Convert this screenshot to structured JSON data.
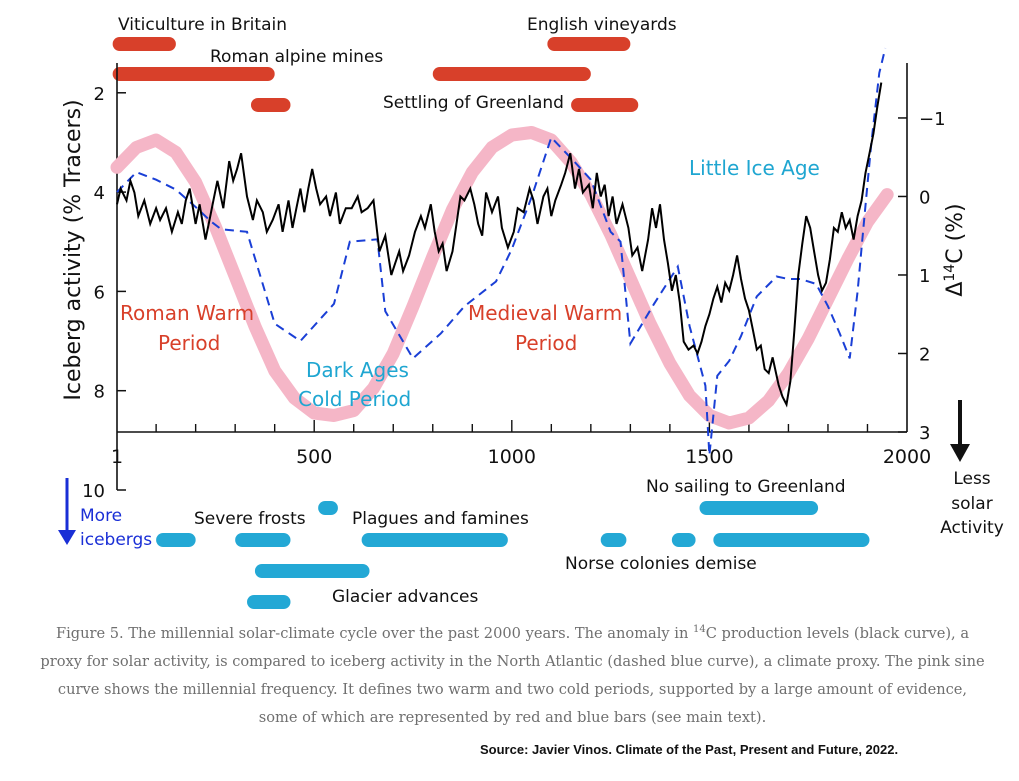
{
  "chart_data": {
    "type": "line",
    "xlabel": "",
    "ylabel_left": "Iceberg activity (% Tracers)",
    "ylabel_right": "Δ14C (%)",
    "x_ticks": [
      1,
      500,
      1000,
      1500,
      2000
    ],
    "xlim": [
      1,
      2000
    ],
    "left_ticks": [
      2,
      4,
      6,
      8,
      10
    ],
    "left_lim": [
      1.4,
      10
    ],
    "left_inverted": true,
    "right_ticks": [
      -1,
      0,
      1,
      2,
      3
    ],
    "right_lim": [
      -1.7,
      3
    ],
    "right_inverted": true,
    "series": [
      {
        "color": "#000000",
        "style": "solid",
        "axis": "right",
        "values": [
          [
            1,
            0.1
          ],
          [
            10,
            -0.1
          ],
          [
            25,
            0.05
          ],
          [
            35,
            -0.2
          ],
          [
            45,
            -0.05
          ],
          [
            55,
            0.25
          ],
          [
            70,
            0.05
          ],
          [
            85,
            0.35
          ],
          [
            100,
            0.15
          ],
          [
            110,
            0.3
          ],
          [
            125,
            0.15
          ],
          [
            140,
            0.45
          ],
          [
            155,
            0.2
          ],
          [
            165,
            0.35
          ],
          [
            175,
            0.05
          ],
          [
            185,
            -0.1
          ],
          [
            200,
            0.35
          ],
          [
            210,
            0.1
          ],
          [
            225,
            0.55
          ],
          [
            235,
            0.3
          ],
          [
            245,
            0.05
          ],
          [
            255,
            -0.2
          ],
          [
            270,
            0.15
          ],
          [
            285,
            -0.45
          ],
          [
            295,
            -0.2
          ],
          [
            305,
            -0.35
          ],
          [
            315,
            -0.55
          ],
          [
            330,
            0.0
          ],
          [
            345,
            0.3
          ],
          [
            355,
            0.05
          ],
          [
            370,
            0.2
          ],
          [
            380,
            0.45
          ],
          [
            395,
            0.3
          ],
          [
            410,
            0.1
          ],
          [
            420,
            0.45
          ],
          [
            435,
            0.05
          ],
          [
            445,
            0.4
          ],
          [
            455,
            0.15
          ],
          [
            465,
            -0.1
          ],
          [
            475,
            0.2
          ],
          [
            485,
            -0.1
          ],
          [
            495,
            -0.35
          ],
          [
            505,
            -0.1
          ],
          [
            515,
            0.1
          ],
          [
            530,
            0.0
          ],
          [
            540,
            0.25
          ],
          [
            555,
            -0.05
          ],
          [
            565,
            0.35
          ],
          [
            580,
            0.15
          ],
          [
            595,
            0.15
          ],
          [
            610,
            0.0
          ],
          [
            620,
            0.2
          ],
          [
            635,
            0.15
          ],
          [
            650,
            0.05
          ],
          [
            665,
            0.7
          ],
          [
            680,
            0.5
          ],
          [
            695,
            1.0
          ],
          [
            705,
            0.85
          ],
          [
            715,
            0.7
          ],
          [
            725,
            0.95
          ],
          [
            740,
            0.75
          ],
          [
            755,
            0.45
          ],
          [
            770,
            0.25
          ],
          [
            780,
            0.4
          ],
          [
            795,
            0.1
          ],
          [
            805,
            0.45
          ],
          [
            815,
            0.7
          ],
          [
            825,
            0.6
          ],
          [
            835,
            0.95
          ],
          [
            850,
            0.7
          ],
          [
            860,
            0.35
          ],
          [
            870,
            0.0
          ],
          [
            880,
            0.05
          ],
          [
            895,
            -0.1
          ],
          [
            905,
            0.1
          ],
          [
            915,
            0.35
          ],
          [
            925,
            0.5
          ],
          [
            935,
            -0.05
          ],
          [
            950,
            0.2
          ],
          [
            965,
            0.0
          ],
          [
            975,
            0.4
          ],
          [
            990,
            0.65
          ],
          [
            1005,
            0.45
          ],
          [
            1015,
            0.15
          ],
          [
            1030,
            0.2
          ],
          [
            1045,
            -0.1
          ],
          [
            1055,
            0.05
          ],
          [
            1065,
            0.35
          ],
          [
            1080,
            0.0
          ],
          [
            1090,
            -0.1
          ],
          [
            1100,
            0.25
          ],
          [
            1110,
            0.05
          ],
          [
            1125,
            -0.15
          ],
          [
            1135,
            -0.3
          ],
          [
            1148,
            -0.55
          ],
          [
            1160,
            -0.1
          ],
          [
            1170,
            -0.35
          ],
          [
            1180,
            -0.05
          ],
          [
            1195,
            -0.15
          ],
          [
            1205,
            0.15
          ],
          [
            1215,
            -0.3
          ],
          [
            1225,
            0.0
          ],
          [
            1235,
            -0.15
          ],
          [
            1245,
            0.25
          ],
          [
            1255,
            0.0
          ],
          [
            1265,
            0.35
          ],
          [
            1280,
            0.1
          ],
          [
            1295,
            0.4
          ],
          [
            1305,
            0.75
          ],
          [
            1318,
            0.65
          ],
          [
            1330,
            0.95
          ],
          [
            1345,
            0.55
          ],
          [
            1355,
            0.15
          ],
          [
            1365,
            0.4
          ],
          [
            1375,
            0.1
          ],
          [
            1385,
            0.55
          ],
          [
            1395,
            0.85
          ],
          [
            1405,
            1.2
          ],
          [
            1415,
            1.0
          ],
          [
            1425,
            1.35
          ],
          [
            1435,
            1.85
          ],
          [
            1447,
            1.95
          ],
          [
            1460,
            1.9
          ],
          [
            1470,
            2.0
          ],
          [
            1480,
            1.85
          ],
          [
            1490,
            1.65
          ],
          [
            1500,
            1.5
          ],
          [
            1510,
            1.3
          ],
          [
            1520,
            1.15
          ],
          [
            1530,
            1.35
          ],
          [
            1540,
            1.1
          ],
          [
            1550,
            1.2
          ],
          [
            1560,
            1.0
          ],
          [
            1570,
            0.75
          ],
          [
            1580,
            1.05
          ],
          [
            1590,
            1.3
          ],
          [
            1600,
            1.45
          ],
          [
            1610,
            1.7
          ],
          [
            1620,
            1.95
          ],
          [
            1630,
            1.9
          ],
          [
            1640,
            2.2
          ],
          [
            1650,
            2.25
          ],
          [
            1660,
            2.05
          ],
          [
            1675,
            2.4
          ],
          [
            1685,
            2.55
          ],
          [
            1695,
            2.65
          ],
          [
            1705,
            2.35
          ],
          [
            1715,
            1.7
          ],
          [
            1725,
            1.0
          ],
          [
            1735,
            0.6
          ],
          [
            1745,
            0.25
          ],
          [
            1755,
            0.4
          ],
          [
            1765,
            0.7
          ],
          [
            1775,
            1.0
          ],
          [
            1785,
            1.2
          ],
          [
            1795,
            1.1
          ],
          [
            1805,
            0.8
          ],
          [
            1815,
            0.4
          ],
          [
            1825,
            0.45
          ],
          [
            1835,
            0.2
          ],
          [
            1845,
            0.4
          ],
          [
            1855,
            0.3
          ],
          [
            1865,
            0.55
          ],
          [
            1875,
            0.25
          ],
          [
            1885,
            0.05
          ],
          [
            1895,
            -0.3
          ],
          [
            1905,
            -0.55
          ],
          [
            1915,
            -0.8
          ],
          [
            1925,
            -1.15
          ],
          [
            1935,
            -1.45
          ]
        ]
      },
      {
        "color": "#1a3fd6",
        "style": "dashed",
        "axis": "left",
        "values": [
          [
            1,
            4.0
          ],
          [
            50,
            3.6
          ],
          [
            100,
            3.75
          ],
          [
            150,
            3.95
          ],
          [
            200,
            4.3
          ],
          [
            240,
            4.6
          ],
          [
            265,
            4.75
          ],
          [
            330,
            4.8
          ],
          [
            400,
            6.65
          ],
          [
            465,
            7.0
          ],
          [
            550,
            6.25
          ],
          [
            590,
            5.0
          ],
          [
            660,
            4.95
          ],
          [
            680,
            6.4
          ],
          [
            750,
            7.35
          ],
          [
            820,
            6.85
          ],
          [
            880,
            6.3
          ],
          [
            960,
            5.8
          ],
          [
            1000,
            5.15
          ],
          [
            1050,
            4.1
          ],
          [
            1100,
            2.9
          ],
          [
            1160,
            3.4
          ],
          [
            1200,
            3.75
          ],
          [
            1250,
            4.8
          ],
          [
            1275,
            5.0
          ],
          [
            1300,
            7.05
          ],
          [
            1360,
            6.25
          ],
          [
            1420,
            5.5
          ],
          [
            1450,
            6.7
          ],
          [
            1490,
            7.9
          ],
          [
            1500,
            9.3
          ],
          [
            1520,
            7.7
          ],
          [
            1550,
            7.4
          ],
          [
            1580,
            6.9
          ],
          [
            1620,
            6.1
          ],
          [
            1670,
            5.7
          ],
          [
            1700,
            5.75
          ],
          [
            1730,
            5.75
          ],
          [
            1770,
            5.85
          ],
          [
            1800,
            6.3
          ],
          [
            1830,
            6.85
          ],
          [
            1855,
            7.35
          ],
          [
            1875,
            6.0
          ],
          [
            1890,
            4.7
          ],
          [
            1910,
            3.0
          ],
          [
            1930,
            1.6
          ],
          [
            1945,
            1.1
          ]
        ]
      },
      {
        "color": "#f5b6c7",
        "style": "solid",
        "axis": "left",
        "values": [
          [
            1,
            3.5
          ],
          [
            50,
            3.1
          ],
          [
            100,
            2.95
          ],
          [
            150,
            3.2
          ],
          [
            200,
            3.8
          ],
          [
            250,
            4.7
          ],
          [
            300,
            5.7
          ],
          [
            350,
            6.7
          ],
          [
            400,
            7.6
          ],
          [
            450,
            8.15
          ],
          [
            500,
            8.45
          ],
          [
            550,
            8.5
          ],
          [
            600,
            8.4
          ],
          [
            650,
            7.95
          ],
          [
            700,
            7.25
          ],
          [
            750,
            6.3
          ],
          [
            800,
            5.3
          ],
          [
            850,
            4.35
          ],
          [
            900,
            3.6
          ],
          [
            950,
            3.1
          ],
          [
            1000,
            2.85
          ],
          [
            1050,
            2.8
          ],
          [
            1100,
            2.95
          ],
          [
            1150,
            3.4
          ],
          [
            1200,
            4.05
          ],
          [
            1250,
            4.85
          ],
          [
            1300,
            5.75
          ],
          [
            1350,
            6.65
          ],
          [
            1400,
            7.45
          ],
          [
            1450,
            8.1
          ],
          [
            1500,
            8.5
          ],
          [
            1550,
            8.65
          ],
          [
            1600,
            8.55
          ],
          [
            1650,
            8.2
          ],
          [
            1700,
            7.65
          ],
          [
            1750,
            6.95
          ],
          [
            1800,
            6.15
          ],
          [
            1850,
            5.35
          ],
          [
            1900,
            4.6
          ],
          [
            1950,
            4.05
          ]
        ]
      }
    ],
    "annotations_red": [
      "Roman Warm",
      "Period",
      "Medieval Warm",
      "Period"
    ],
    "annotations_blue": [
      "Dark Ages",
      "Cold Period",
      "Little Ice Age"
    ],
    "red_bars": [
      {
        "label": "Viticulture in Britain",
        "start": -10,
        "end": 150
      },
      {
        "label": "Roman alpine mines",
        "start": -10,
        "end": 400
      },
      {
        "label": "",
        "start": 340,
        "end": 440
      },
      {
        "label": "English vineyards",
        "start": 1090,
        "end": 1300
      },
      {
        "label": "",
        "start": 800,
        "end": 1200
      },
      {
        "label": "Settling of Greenland",
        "start": 1150,
        "end": 1320
      }
    ],
    "blue_bars": [
      {
        "label": "",
        "start": 1475,
        "end": 1775
      },
      {
        "label": "",
        "start": 510,
        "end": 560
      },
      {
        "label": "",
        "start": 100,
        "end": 200
      },
      {
        "label": "Severe frosts",
        "start": 300,
        "end": 440
      },
      {
        "label": "Plagues and famines",
        "start": 620,
        "end": 990
      },
      {
        "label": "",
        "start": 1225,
        "end": 1290
      },
      {
        "label": "",
        "start": 1405,
        "end": 1465
      },
      {
        "label": "Norse colonies demise",
        "start": 1510,
        "end": 1905
      },
      {
        "label": "",
        "start": 350,
        "end": 640
      },
      {
        "label": "Glacier advances",
        "start": 330,
        "end": 440
      }
    ],
    "blue_bar_titles": [
      "No sailing to Greenland"
    ],
    "left_note": [
      "More",
      "icebergs"
    ],
    "right_note": [
      "Less",
      "solar",
      "Activity"
    ]
  },
  "caption": {
    "prefix": "Figure 5. The millennial solar-climate cycle over the past 2000 years. The anomaly in ",
    "sup": "14",
    "suffix": "C production levels (black curve), a proxy for solar activity, is compared to iceberg activity in the North Atlantic (dashed blue curve), a climate proxy. The pink sine curve shows the millennial frequency. It defines two warm and two cold periods, supported by a large amount of evidence, some of which are represented by red and blue bars (see main text)."
  },
  "source": "Source: Javier Vinos.  Climate of the Past, Present and Future, 2022.",
  "colors": {
    "red": "#d8402a",
    "blue_bar": "#23a8d5",
    "red_text": "#d8402a",
    "blue_text": "#1fa6d1",
    "dark_blue": "#1a2fd6"
  }
}
